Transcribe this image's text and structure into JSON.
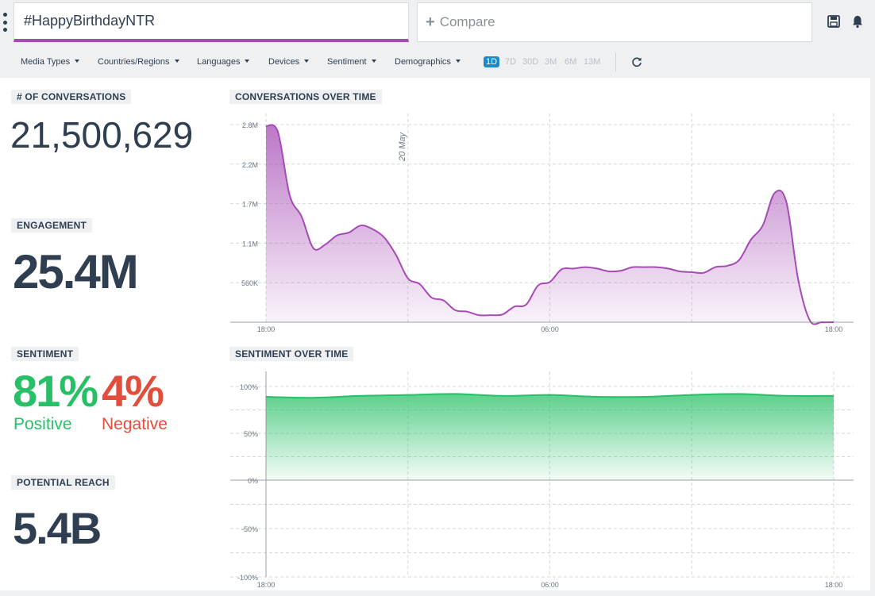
{
  "search": {
    "query": "#HappyBirthdayNTR"
  },
  "compare": {
    "label": "Compare"
  },
  "filters": [
    "Media Types",
    "Countries/Regions",
    "Languages",
    "Devices",
    "Sentiment",
    "Demographics"
  ],
  "ranges": [
    {
      "label": "1D",
      "active": true
    },
    {
      "label": "7D",
      "active": false
    },
    {
      "label": "30D",
      "active": false
    },
    {
      "label": "3M",
      "active": false
    },
    {
      "label": "6M",
      "active": false
    },
    {
      "label": "13M",
      "active": false
    }
  ],
  "metrics": {
    "conversations": {
      "label": "# OF CONVERSATIONS",
      "value": "21,500,629"
    },
    "engagement": {
      "label": "ENGAGEMENT",
      "value": "25.4M"
    },
    "sentiment": {
      "label": "SENTIMENT",
      "positive": "81%",
      "positive_label": "Positive",
      "negative": "4%",
      "negative_label": "Negative"
    },
    "reach": {
      "label": "POTENTIAL REACH",
      "value": "5.4B"
    }
  },
  "colors": {
    "accent": "#a64ab5",
    "positive": "#27c066",
    "negative": "#e24e3b",
    "active_range": "#1a8bc6",
    "text": "#2f3e50"
  },
  "chart_data": [
    {
      "type": "area",
      "title": "CONVERSATIONS OVER TIME",
      "x_tick_labels": [
        "18:00",
        "06:00",
        "18:00"
      ],
      "y_tick_labels": [
        "560K",
        "1.1M",
        "1.7M",
        "2.2M",
        "2.8M"
      ],
      "ylim": [
        0,
        2800000
      ],
      "annotation": "20 May",
      "color": "#a64ab5",
      "x": [
        0,
        0.5,
        1,
        1.5,
        2,
        2.5,
        3,
        3.5,
        4,
        4.5,
        5,
        5.5,
        6,
        6.5,
        7,
        7.5,
        8,
        8.5,
        9,
        9.5,
        10,
        10.5,
        11,
        11.5,
        12,
        12.5,
        13,
        13.5,
        14,
        14.5,
        15,
        15.5,
        16,
        16.5,
        17,
        17.5,
        18,
        18.5,
        19,
        19.5,
        20,
        20.5,
        21,
        21.5,
        22,
        22.5,
        23,
        23.5,
        24
      ],
      "values": [
        2780000,
        2700000,
        1800000,
        1500000,
        1050000,
        1100000,
        1230000,
        1270000,
        1370000,
        1320000,
        1200000,
        950000,
        620000,
        540000,
        350000,
        310000,
        170000,
        150000,
        100000,
        100000,
        110000,
        220000,
        250000,
        520000,
        570000,
        750000,
        760000,
        780000,
        760000,
        720000,
        730000,
        780000,
        780000,
        780000,
        760000,
        720000,
        710000,
        700000,
        780000,
        800000,
        880000,
        1170000,
        1370000,
        1830000,
        1700000,
        600000,
        20000,
        0,
        0
      ]
    },
    {
      "type": "area",
      "title": "SENTIMENT OVER TIME",
      "x_tick_labels": [
        "18:00",
        "06:00",
        "18:00"
      ],
      "y_tick_labels": [
        "100%",
        "50%",
        "0%",
        "-50%",
        "-100%"
      ],
      "ylim": [
        -100,
        100
      ],
      "color": "#27c066",
      "x": [
        0,
        2,
        4,
        6,
        8,
        10,
        12,
        14,
        16,
        18,
        20,
        22,
        24
      ],
      "values": [
        89,
        88,
        90,
        91,
        92,
        90,
        91,
        89,
        89,
        91,
        92,
        90,
        90
      ]
    }
  ]
}
